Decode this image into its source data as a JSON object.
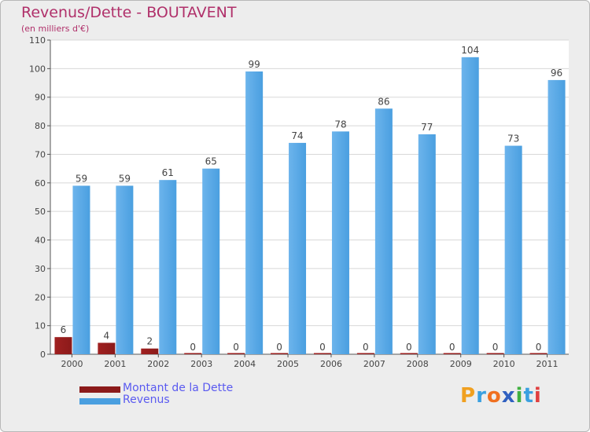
{
  "title": "Revenus/Dette - BOUTAVENT",
  "subtitle": "(en milliers d'€)",
  "legend": {
    "debt_label": "Montant de la Dette",
    "revenue_label": "Revenus"
  },
  "logo": {
    "text": "Proxiti",
    "letters": [
      "P",
      "r",
      "o",
      "x",
      "i",
      "t",
      "i"
    ],
    "letter_colors": [
      "#f0a020",
      "#3aa0e0",
      "#f07020",
      "#3060c0",
      "#40b040",
      "#3aa0e0",
      "#e04040"
    ]
  },
  "colors": {
    "debt": "#8b1a1a",
    "revenue": "#4a9fe0",
    "grid": "#d8d8d8",
    "axis": "#555555"
  },
  "chart_data": {
    "type": "bar",
    "title": "Revenus/Dette - BOUTAVENT",
    "ylabel": "(en milliers d'€)",
    "xlabel": "",
    "ylim": [
      0,
      110
    ],
    "yticks": [
      0,
      10,
      20,
      30,
      40,
      50,
      60,
      70,
      80,
      90,
      100,
      110
    ],
    "grid": true,
    "legend_position": "bottom-left",
    "categories": [
      "2000",
      "2001",
      "2002",
      "2003",
      "2004",
      "2005",
      "2006",
      "2007",
      "2008",
      "2009",
      "2010",
      "2011"
    ],
    "series": [
      {
        "name": "Montant de la Dette",
        "values": [
          6,
          4,
          2,
          0,
          0,
          0,
          0,
          0,
          0,
          0,
          0,
          0
        ]
      },
      {
        "name": "Revenus",
        "values": [
          59,
          59,
          61,
          65,
          99,
          74,
          78,
          86,
          77,
          104,
          73,
          96
        ]
      }
    ]
  }
}
